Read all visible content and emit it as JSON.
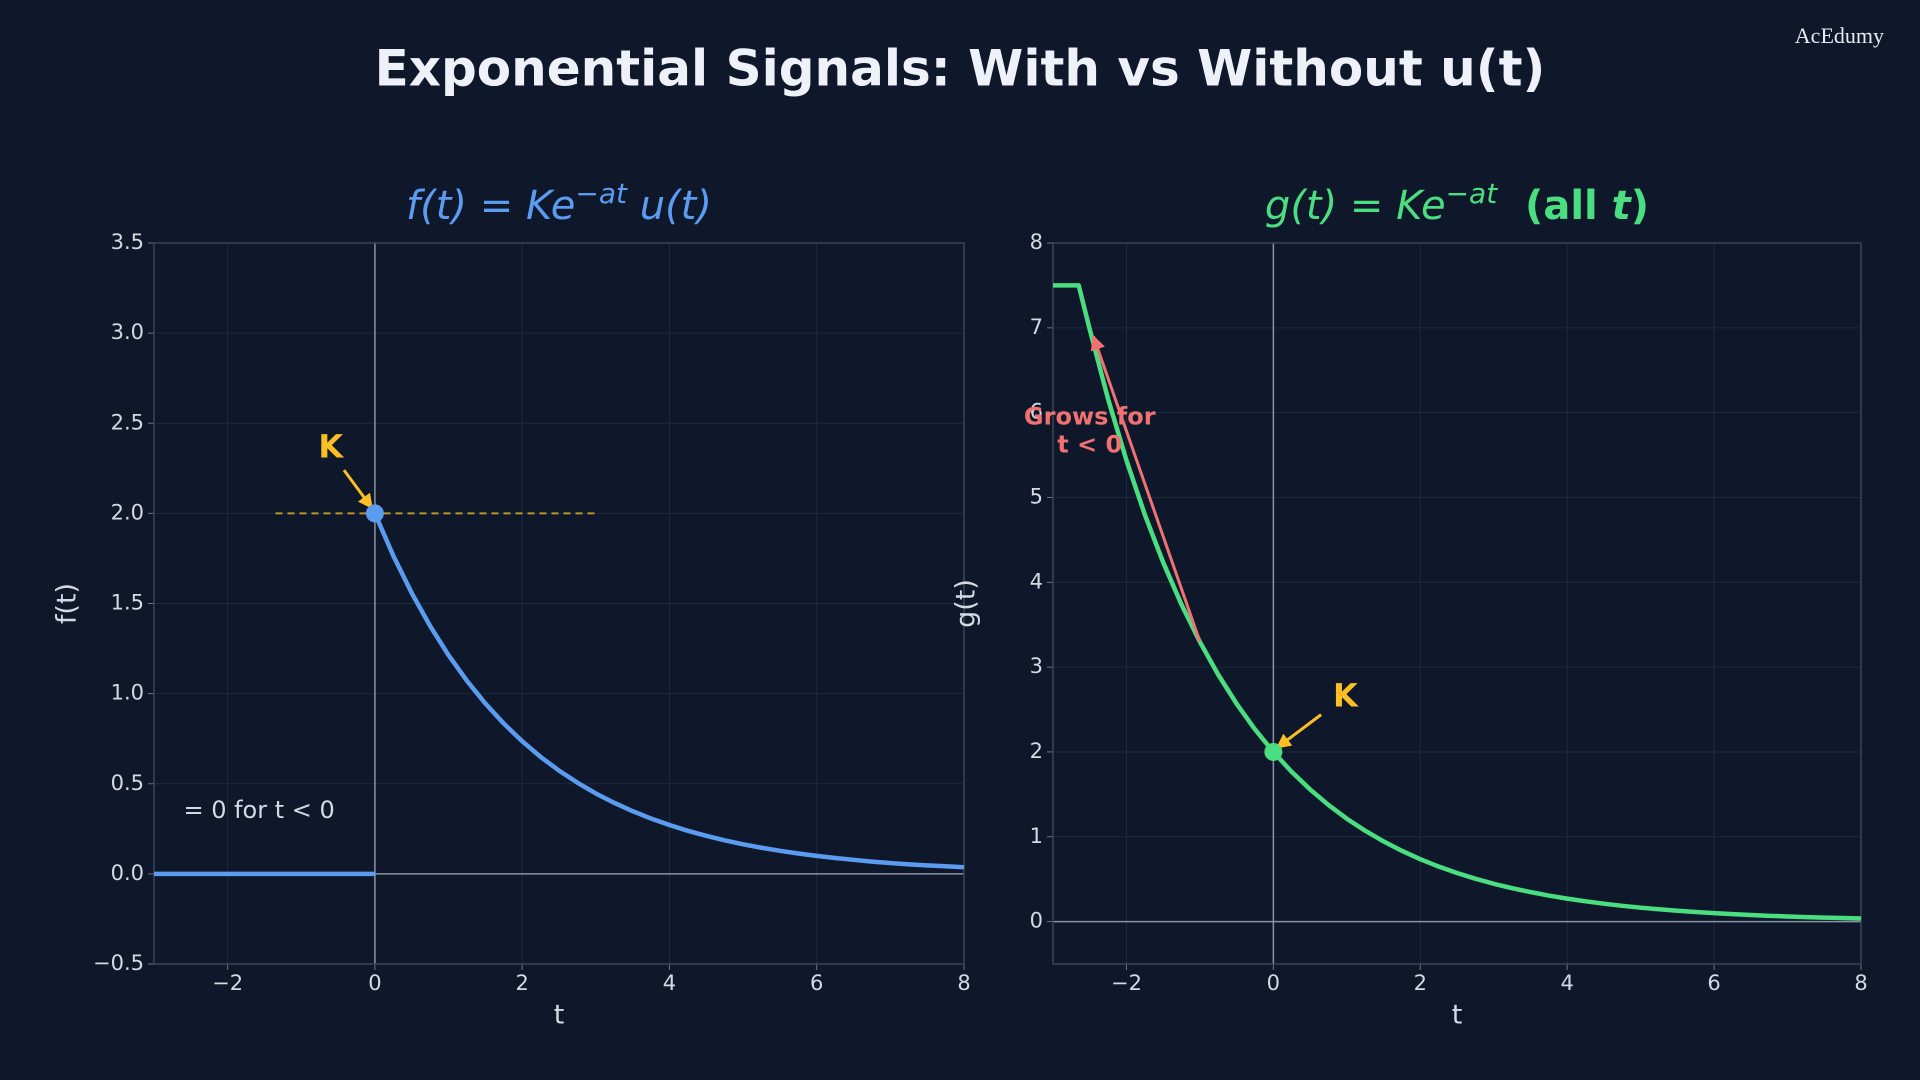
{
  "title": "Exponential Signals: With vs Without u(t)",
  "watermark": "AcEdumy",
  "chart_data": [
    {
      "type": "line",
      "title": [
        {
          "text": "f(t) = Ke",
          "style": "italic"
        },
        {
          "text": "−at",
          "style": "sup"
        },
        {
          "text": " u(t)",
          "style": "italic"
        }
      ],
      "title_color": "#5b9cf0",
      "xlabel": "t",
      "ylabel": "f(t)",
      "xlim": [
        -3,
        8
      ],
      "ylim": [
        -0.5,
        3.5
      ],
      "grid": true,
      "xticks": [
        {
          "value": -2,
          "label": "−2"
        },
        0,
        2,
        4,
        6,
        8
      ],
      "yticks": [
        {
          "value": -0.5,
          "label": "−0.5"
        },
        {
          "value": 0,
          "label": "0.0"
        },
        0.5,
        {
          "value": 1,
          "label": "1.0"
        },
        1.5,
        {
          "value": 2,
          "label": "2.0"
        },
        2.5,
        {
          "value": 3,
          "label": "3.0"
        },
        3.5
      ],
      "series": [
        {
          "color": "#5b9cf0",
          "x": [
            -3,
            -2,
            -1,
            0
          ],
          "values": [
            0,
            0,
            0,
            0
          ]
        },
        {
          "color": "#5b9cf0",
          "x": [
            0,
            0.25,
            0.5,
            0.75,
            1,
            1.25,
            1.5,
            1.75,
            2,
            2.25,
            2.5,
            2.75,
            3,
            3.25,
            3.5,
            3.75,
            4,
            4.25,
            4.5,
            4.75,
            5,
            5.25,
            5.5,
            5.75,
            6,
            6.25,
            6.5,
            6.75,
            7,
            7.25,
            7.5,
            7.75,
            8
          ],
          "values": [
            2,
            1.765,
            1.558,
            1.375,
            1.213,
            1.071,
            0.945,
            0.834,
            0.736,
            0.649,
            0.573,
            0.506,
            0.446,
            0.394,
            0.348,
            0.307,
            0.271,
            0.239,
            0.211,
            0.186,
            0.164,
            0.145,
            0.128,
            0.113,
            0.1,
            0.088,
            0.078,
            0.068,
            0.06,
            0.053,
            0.047,
            0.042,
            0.037
          ]
        }
      ],
      "markers": [
        {
          "x": 0,
          "y": 2,
          "color": "#5b9cf0"
        }
      ],
      "hline": {
        "y": 2,
        "xmin": -1.35,
        "xmax": 3.05,
        "color": "#b8952a"
      },
      "annotations": [
        {
          "text": [
            "K"
          ],
          "color": "#fbbf24",
          "bold": true,
          "size": 32,
          "xytext": [
            -0.6,
            2.36
          ],
          "from": [
            -0.42,
            2.24
          ],
          "xy": [
            -0.04,
            2.03
          ]
        },
        {
          "text": [
            "= 0 for t < 0"
          ],
          "color": "#d4d9e2",
          "bold": false,
          "size": 24,
          "anchor": "start",
          "xytext": [
            -2.6,
            0.35
          ]
        }
      ]
    },
    {
      "type": "line",
      "title": [
        {
          "text": "g(t) = Ke",
          "style": "italic"
        },
        {
          "text": "−at",
          "style": "sup"
        },
        {
          "text": "  (all ",
          "style": "bold"
        },
        {
          "text": "t",
          "style": "bold-italic"
        },
        {
          "text": ")",
          "style": "bold"
        }
      ],
      "title_color": "#4ade80",
      "xlabel": "t",
      "ylabel": "g(t)",
      "xlim": [
        -3,
        8
      ],
      "ylim": [
        -0.5,
        8
      ],
      "grid": true,
      "xticks": [
        {
          "value": -2,
          "label": "−2"
        },
        0,
        2,
        4,
        6,
        8
      ],
      "yticks": [
        0,
        1,
        2,
        3,
        4,
        5,
        6,
        7,
        8
      ],
      "series": [
        {
          "color": "#4ade80",
          "x": [
            -3,
            -2.65,
            -2.5,
            -2.25,
            -2,
            -1.75,
            -1.5,
            -1.25,
            -1,
            -0.75,
            -0.5,
            -0.25,
            0,
            0.25,
            0.5,
            0.75,
            1,
            1.25,
            1.5,
            1.75,
            2,
            2.25,
            2.5,
            2.75,
            3,
            3.25,
            3.5,
            3.75,
            4,
            4.25,
            4.5,
            4.75,
            5,
            5.25,
            5.5,
            5.75,
            6,
            6.25,
            6.5,
            6.75,
            7,
            7.25,
            7.5,
            7.75,
            8
          ],
          "values": [
            7.5,
            7.5,
            6.981,
            6.16,
            5.437,
            4.797,
            4.234,
            3.736,
            3.297,
            2.91,
            2.568,
            2.266,
            2,
            1.765,
            1.558,
            1.375,
            1.213,
            1.071,
            0.945,
            0.834,
            0.736,
            0.649,
            0.573,
            0.506,
            0.446,
            0.394,
            0.348,
            0.307,
            0.271,
            0.239,
            0.211,
            0.186,
            0.164,
            0.145,
            0.128,
            0.113,
            0.1,
            0.088,
            0.078,
            0.068,
            0.06,
            0.053,
            0.047,
            0.042,
            0.037
          ]
        }
      ],
      "markers": [
        {
          "x": 0,
          "y": 2,
          "color": "#4ade80"
        }
      ],
      "annotations": [
        {
          "text": [
            "K"
          ],
          "color": "#fbbf24",
          "bold": true,
          "size": 32,
          "xytext": [
            0.98,
            2.64
          ],
          "from": [
            0.65,
            2.44
          ],
          "xy": [
            0.05,
            2.05
          ]
        },
        {
          "text": [
            "Grows for",
            "t < 0"
          ],
          "color": "#f07171",
          "bold": true,
          "size": 24,
          "xytext": [
            -2.5,
            5.94
          ],
          "from": [
            -1.0,
            3.3
          ],
          "xy": [
            -2.45,
            6.9
          ]
        }
      ]
    }
  ]
}
